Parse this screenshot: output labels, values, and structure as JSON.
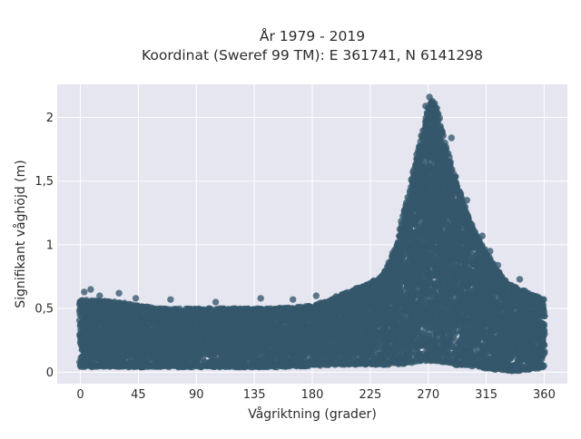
{
  "chart_data": {
    "type": "scatter",
    "title_line1": "År 1979 - 2019",
    "title_line2": "Koordinat (Sweref 99 TM): E 361741, N 6141298",
    "xlabel": "Vågriktning (grader)",
    "ylabel": "Signifikant våghöjd (m)",
    "xlim": [
      -18,
      378
    ],
    "ylim": [
      -0.09,
      2.26
    ],
    "x_ticks": [
      0,
      45,
      90,
      135,
      180,
      225,
      270,
      315,
      360
    ],
    "x_tick_labels": [
      "0",
      "45",
      "90",
      "135",
      "180",
      "225",
      "270",
      "315",
      "360"
    ],
    "y_ticks": [
      0,
      0.5,
      1,
      1.5,
      2
    ],
    "y_tick_labels": [
      "0",
      "0,5",
      "1",
      "1,5",
      "2"
    ],
    "grid": true,
    "legend": "none",
    "colors": {
      "marker": "#34576b",
      "plot_bg": "#e5e6f0",
      "grid": "#ffffff"
    },
    "envelope": {
      "direction": [
        0,
        30,
        60,
        90,
        120,
        150,
        180,
        200,
        220,
        235,
        245,
        255,
        262,
        268,
        272,
        276,
        282,
        290,
        300,
        310,
        320,
        330,
        340,
        350,
        360
      ],
      "max_height": [
        0.57,
        0.55,
        0.5,
        0.5,
        0.5,
        0.5,
        0.52,
        0.6,
        0.68,
        0.76,
        0.98,
        1.42,
        1.74,
        1.98,
        2.14,
        2.1,
        1.84,
        1.55,
        1.24,
        1.03,
        0.85,
        0.72,
        0.65,
        0.62,
        0.57
      ],
      "min_height": [
        0.04,
        0.04,
        0.04,
        0.04,
        0.04,
        0.04,
        0.05,
        0.06,
        0.06,
        0.06,
        0.06,
        0.07,
        0.08,
        0.09,
        0.09,
        0.09,
        0.08,
        0.06,
        0.05,
        0.04,
        0.02,
        0.01,
        0.01,
        0.02,
        0.04
      ]
    },
    "outliers": [
      {
        "x": 3,
        "y": 0.63
      },
      {
        "x": 8,
        "y": 0.65
      },
      {
        "x": 15,
        "y": 0.6
      },
      {
        "x": 30,
        "y": 0.62
      },
      {
        "x": 43,
        "y": 0.58
      },
      {
        "x": 70,
        "y": 0.57
      },
      {
        "x": 105,
        "y": 0.55
      },
      {
        "x": 140,
        "y": 0.58
      },
      {
        "x": 165,
        "y": 0.57
      },
      {
        "x": 183,
        "y": 0.6
      },
      {
        "x": 271,
        "y": 2.16
      },
      {
        "x": 268,
        "y": 2.09
      },
      {
        "x": 275,
        "y": 2.11
      },
      {
        "x": 288,
        "y": 1.84
      },
      {
        "x": 300,
        "y": 1.35
      },
      {
        "x": 312,
        "y": 1.07
      },
      {
        "x": 318,
        "y": 0.95
      },
      {
        "x": 324,
        "y": 0.84
      },
      {
        "x": 341,
        "y": 0.73
      }
    ]
  }
}
